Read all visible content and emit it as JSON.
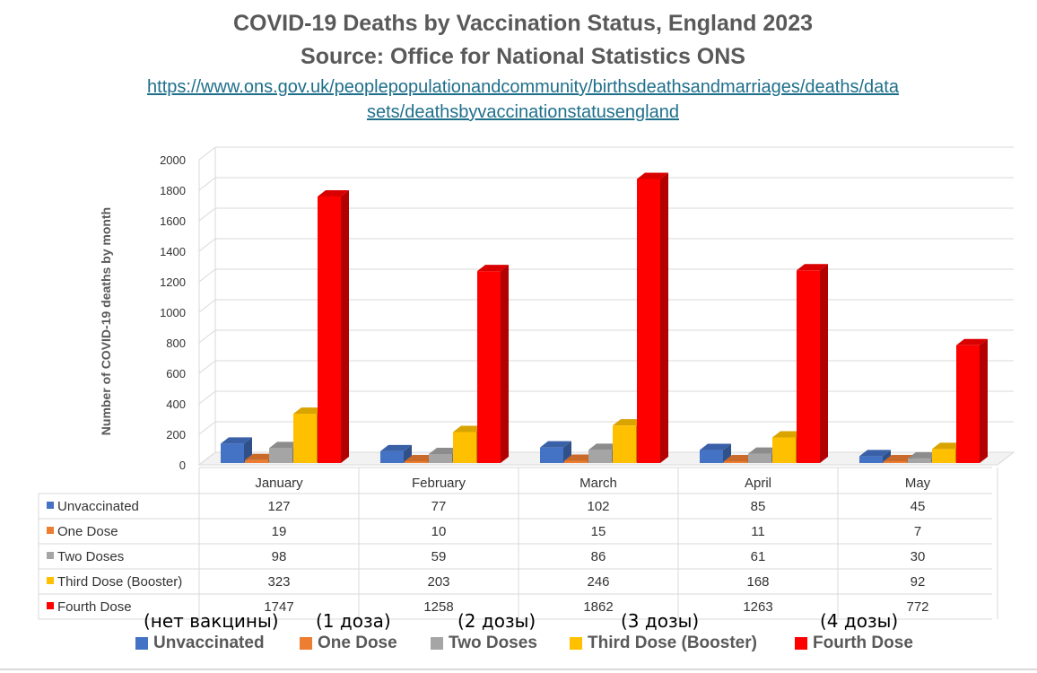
{
  "title_line1": "COVID-19 Deaths by Vaccination Status, England 2023",
  "title_line2": "Source: Office for National Statistics ONS",
  "source_url_line1": "https://www.ons.gov.uk/peoplepopulationandcommunity/birthsdeathsandmarriages/deaths/data",
  "source_url_line2": "sets/deathsbyvaccinationstatusengland",
  "russian_labels": [
    "(нет вакцины)",
    "(1 доза)",
    "(2 дозы)",
    "(3 дозы)",
    "(4 дозы)"
  ],
  "colors": {
    "unvaccinated": "#4472c4",
    "one_dose": "#ed7d31",
    "two_doses": "#a5a5a5",
    "third_dose": "#ffc000",
    "fourth_dose": "#ff0000"
  },
  "chart_data": {
    "type": "bar",
    "style": "3d-clustered-column-with-data-table",
    "title": "COVID-19 Deaths by Vaccination Status, England 2023",
    "subtitle": "Source: Office for National Statistics ONS",
    "xlabel": "",
    "ylabel": "Number of COVID-19 deaths by month",
    "ylim": [
      0,
      2000
    ],
    "yticks": [
      0,
      200,
      400,
      600,
      800,
      1000,
      1200,
      1400,
      1600,
      1800,
      2000
    ],
    "grid": true,
    "legend_position": "bottom",
    "categories": [
      "January",
      "February",
      "March",
      "April",
      "May"
    ],
    "series": [
      {
        "name": "Unvaccinated",
        "color": "#4472c4",
        "values": [
          127,
          77,
          102,
          85,
          45
        ]
      },
      {
        "name": "One Dose",
        "color": "#ed7d31",
        "values": [
          19,
          10,
          15,
          11,
          7
        ]
      },
      {
        "name": "Two Doses",
        "color": "#a5a5a5",
        "values": [
          98,
          59,
          86,
          61,
          30
        ]
      },
      {
        "name": "Third Dose (Booster)",
        "color": "#ffc000",
        "values": [
          323,
          203,
          246,
          168,
          92
        ]
      },
      {
        "name": "Fourth Dose",
        "color": "#ff0000",
        "values": [
          1747,
          1258,
          1862,
          1263,
          772
        ]
      }
    ]
  }
}
